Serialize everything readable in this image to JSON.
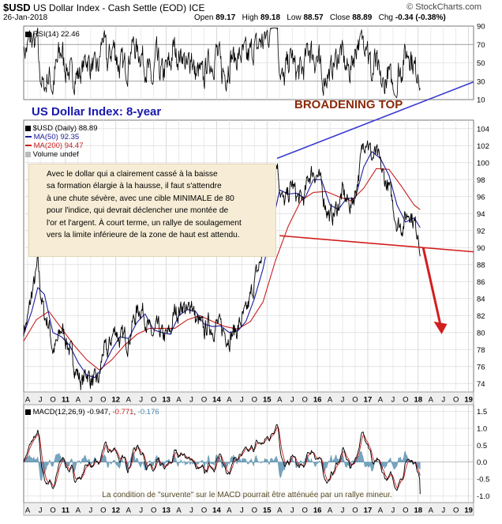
{
  "header": {
    "ticker": "$USD",
    "title_rest": "US Dollar Index - Cash Settle (EOD)",
    "exchange": "ICE",
    "date": "26-Jan-2018",
    "brand": "© StockCharts.com",
    "open_label": "Open",
    "open": "89.17",
    "high_label": "High",
    "high": "89.18",
    "low_label": "Low",
    "low": "88.57",
    "close_label": "Close",
    "close": "88.89",
    "chg_label": "Chg",
    "chg": "-0.34 (-0.38%)"
  },
  "colors": {
    "price": "#000000",
    "ma50": "#1c1c9c",
    "ma200": "#c81e1e",
    "grid": "#d9d9d9",
    "annotation_blue": "#3c3cd2",
    "annotation_red": "#d21e1e",
    "macd_fill": "#4a86a8"
  },
  "annotations": {
    "big_title": "US Dollar Index: 8-year",
    "broadening_top": "BROADENING TOP",
    "note_lines": [
      "Avec le dollar qui a clairement cassé à la baisse",
      "sa formation élargie à la hausse, il faut s'attendre",
      "à une chute sévère, avec une cible MINIMALE de 80",
      "pour l'indice, qui devrait déclencher une montée de",
      "l'or et l'argent. À court terme, un rallye de soulagement",
      "vers la limite inférieure de la zone de haut est attendu."
    ],
    "macd_note": "La condition de \"survente\" sur le MACD pourrait être atténuée par un rallye mineur."
  },
  "chart_data": [
    {
      "panel": "rsi",
      "type": "line",
      "label": "RSI(14)",
      "last_value": "22.46",
      "ylim": [
        10,
        90
      ],
      "yticks": [
        10,
        30,
        50,
        70,
        90
      ],
      "reference_lines": [
        30,
        70
      ]
    },
    {
      "panel": "price",
      "type": "line",
      "legend": [
        {
          "name": "$USD (Daily)",
          "value": "88.89"
        },
        {
          "name": "MA(50)",
          "value": "92.35"
        },
        {
          "name": "MA(200)",
          "value": "94.47"
        },
        {
          "name": "Volume undef",
          "value": ""
        }
      ],
      "ylim": [
        73,
        105
      ],
      "yticks": [
        74,
        76,
        78,
        80,
        82,
        84,
        86,
        88,
        90,
        92,
        94,
        96,
        98,
        100,
        102,
        104
      ],
      "x_start": 2010.17,
      "x_end": 2019.1,
      "price_path": [
        [
          2010.17,
          80.5
        ],
        [
          2010.25,
          81.5
        ],
        [
          2010.33,
          84.5
        ],
        [
          2010.42,
          86.8
        ],
        [
          2010.45,
          88.3
        ],
        [
          2010.5,
          85
        ],
        [
          2010.58,
          82
        ],
        [
          2010.67,
          81
        ],
        [
          2010.75,
          78
        ],
        [
          2010.83,
          78.5
        ],
        [
          2010.92,
          80.5
        ],
        [
          2011.0,
          79.5
        ],
        [
          2011.08,
          78
        ],
        [
          2011.17,
          76.5
        ],
        [
          2011.25,
          75
        ],
        [
          2011.33,
          74
        ],
        [
          2011.42,
          75.5
        ],
        [
          2011.5,
          74.5
        ],
        [
          2011.58,
          74
        ],
        [
          2011.67,
          74.5
        ],
        [
          2011.75,
          78
        ],
        [
          2011.83,
          77.5
        ],
        [
          2011.92,
          79.5
        ],
        [
          2012.0,
          80.5
        ],
        [
          2012.08,
          79
        ],
        [
          2012.17,
          79.5
        ],
        [
          2012.25,
          79
        ],
        [
          2012.33,
          81
        ],
        [
          2012.42,
          82.5
        ],
        [
          2012.5,
          83
        ],
        [
          2012.58,
          82
        ],
        [
          2012.67,
          80
        ],
        [
          2012.75,
          79.5
        ],
        [
          2012.83,
          80.5
        ],
        [
          2012.92,
          79.5
        ],
        [
          2013.0,
          79.5
        ],
        [
          2013.08,
          80
        ],
        [
          2013.17,
          82.5
        ],
        [
          2013.25,
          82.5
        ],
        [
          2013.33,
          83.5
        ],
        [
          2013.42,
          82
        ],
        [
          2013.5,
          84
        ],
        [
          2013.58,
          81.5
        ],
        [
          2013.67,
          81
        ],
        [
          2013.75,
          80
        ],
        [
          2013.83,
          81
        ],
        [
          2013.92,
          80.5
        ],
        [
          2014.0,
          81
        ],
        [
          2014.08,
          80.5
        ],
        [
          2014.17,
          80
        ],
        [
          2014.25,
          79.5
        ],
        [
          2014.33,
          80
        ],
        [
          2014.42,
          80.5
        ],
        [
          2014.5,
          81.5
        ],
        [
          2014.58,
          82
        ],
        [
          2014.67,
          84
        ],
        [
          2014.75,
          86
        ],
        [
          2014.83,
          87.5
        ],
        [
          2014.92,
          89.5
        ],
        [
          2015.0,
          92
        ],
        [
          2015.08,
          94.5
        ],
        [
          2015.17,
          99.5
        ],
        [
          2015.2,
          100.3
        ],
        [
          2015.25,
          97.5
        ],
        [
          2015.33,
          95
        ],
        [
          2015.42,
          96
        ],
        [
          2015.5,
          97.5
        ],
        [
          2015.58,
          96
        ],
        [
          2015.67,
          95.5
        ],
        [
          2015.75,
          96
        ],
        [
          2015.83,
          98.5
        ],
        [
          2015.92,
          99
        ],
        [
          2016.0,
          98.5
        ],
        [
          2016.08,
          97
        ],
        [
          2016.17,
          95
        ],
        [
          2016.25,
          93.5
        ],
        [
          2016.33,
          94
        ],
        [
          2016.42,
          95
        ],
        [
          2016.5,
          96.5
        ],
        [
          2016.58,
          95.5
        ],
        [
          2016.67,
          95
        ],
        [
          2016.75,
          96.5
        ],
        [
          2016.83,
          99
        ],
        [
          2016.92,
          102.5
        ],
        [
          2016.98,
          103.3
        ],
        [
          2017.08,
          100.5
        ],
        [
          2017.17,
          101
        ],
        [
          2017.25,
          99.5
        ],
        [
          2017.33,
          98
        ],
        [
          2017.42,
          97
        ],
        [
          2017.5,
          95
        ],
        [
          2017.58,
          93
        ],
        [
          2017.67,
          92.5
        ],
        [
          2017.75,
          93.5
        ],
        [
          2017.83,
          94.5
        ],
        [
          2017.92,
          93
        ],
        [
          2018.0,
          91.5
        ],
        [
          2018.04,
          88.9
        ]
      ],
      "ma50_path": [
        [
          2010.17,
          79.8
        ],
        [
          2010.33,
          82.5
        ],
        [
          2010.45,
          85.3
        ],
        [
          2010.58,
          84.5
        ],
        [
          2010.75,
          80
        ],
        [
          2010.92,
          79.5
        ],
        [
          2011.08,
          78.5
        ],
        [
          2011.25,
          76.5
        ],
        [
          2011.42,
          75
        ],
        [
          2011.58,
          74.7
        ],
        [
          2011.75,
          76
        ],
        [
          2011.92,
          78
        ],
        [
          2012.08,
          79.5
        ],
        [
          2012.25,
          79.3
        ],
        [
          2012.42,
          81.2
        ],
        [
          2012.58,
          82.2
        ],
        [
          2012.75,
          80.3
        ],
        [
          2012.92,
          80
        ],
        [
          2013.08,
          79.8
        ],
        [
          2013.25,
          82
        ],
        [
          2013.42,
          82.7
        ],
        [
          2013.58,
          82.5
        ],
        [
          2013.75,
          81
        ],
        [
          2013.92,
          80.7
        ],
        [
          2014.08,
          80.8
        ],
        [
          2014.25,
          80
        ],
        [
          2014.42,
          80.2
        ],
        [
          2014.58,
          81.3
        ],
        [
          2014.75,
          84
        ],
        [
          2014.92,
          87.5
        ],
        [
          2015.08,
          92
        ],
        [
          2015.25,
          96.8
        ],
        [
          2015.42,
          96.3
        ],
        [
          2015.58,
          96.4
        ],
        [
          2015.75,
          95.8
        ],
        [
          2015.92,
          98
        ],
        [
          2016.08,
          98
        ],
        [
          2016.25,
          95
        ],
        [
          2016.42,
          94.5
        ],
        [
          2016.58,
          95.8
        ],
        [
          2016.75,
          95.8
        ],
        [
          2016.92,
          99.5
        ],
        [
          2017.08,
          101.3
        ],
        [
          2017.25,
          100.5
        ],
        [
          2017.42,
          98.5
        ],
        [
          2017.58,
          95
        ],
        [
          2017.75,
          93
        ],
        [
          2017.92,
          93.5
        ],
        [
          2018.04,
          92.35
        ]
      ],
      "ma200_path": [
        [
          2010.17,
          79
        ],
        [
          2010.42,
          81.5
        ],
        [
          2010.67,
          82.5
        ],
        [
          2010.92,
          80.5
        ],
        [
          2011.17,
          78.5
        ],
        [
          2011.42,
          76.8
        ],
        [
          2011.67,
          75.6
        ],
        [
          2011.92,
          76.8
        ],
        [
          2012.17,
          78.5
        ],
        [
          2012.42,
          79.8
        ],
        [
          2012.67,
          80.5
        ],
        [
          2012.92,
          80.5
        ],
        [
          2013.17,
          80.5
        ],
        [
          2013.42,
          81.5
        ],
        [
          2013.67,
          82
        ],
        [
          2013.92,
          81.3
        ],
        [
          2014.17,
          80.7
        ],
        [
          2014.42,
          80.4
        ],
        [
          2014.67,
          81.3
        ],
        [
          2014.92,
          83.6
        ],
        [
          2015.17,
          88.5
        ],
        [
          2015.42,
          92.5
        ],
        [
          2015.67,
          95.5
        ],
        [
          2015.92,
          96.5
        ],
        [
          2016.17,
          96.6
        ],
        [
          2016.42,
          96
        ],
        [
          2016.67,
          95.5
        ],
        [
          2016.92,
          97
        ],
        [
          2017.17,
          99.3
        ],
        [
          2017.42,
          99.2
        ],
        [
          2017.67,
          97.2
        ],
        [
          2017.92,
          95
        ],
        [
          2018.04,
          94.47
        ]
      ],
      "trendlines": [
        {
          "name": "upper",
          "from": [
            2015.2,
            100.5
          ],
          "to": [
            2019.1,
            109.5
          ]
        },
        {
          "name": "lower",
          "from": [
            2015.25,
            91.4
          ],
          "to": [
            2019.1,
            89.5
          ]
        }
      ],
      "arrow": {
        "from": [
          2018.1,
          90.0
        ],
        "to": [
          2018.45,
          79.8
        ]
      }
    },
    {
      "panel": "macd",
      "type": "line",
      "label": "MACD(12,26,9)",
      "values": [
        "-0.947",
        "-0.771",
        "-0.176"
      ],
      "ylim": [
        -1.2,
        1.7
      ],
      "yticks": [
        -1.0,
        -0.5,
        0.0,
        0.5,
        1.0,
        1.5
      ],
      "ytick_labels": [
        "-1.0",
        "-0.5",
        "0.0",
        "0.5",
        "1.0",
        "1.5"
      ]
    }
  ],
  "x_axis": {
    "labels": [
      {
        "t": 2010.25,
        "text": "A"
      },
      {
        "t": 2010.5,
        "text": "J"
      },
      {
        "t": 2010.75,
        "text": "O"
      },
      {
        "t": 2011.0,
        "text": "11",
        "bold": true
      },
      {
        "t": 2011.25,
        "text": "A"
      },
      {
        "t": 2011.5,
        "text": "J"
      },
      {
        "t": 2011.75,
        "text": "O"
      },
      {
        "t": 2012.0,
        "text": "12",
        "bold": true
      },
      {
        "t": 2012.25,
        "text": "A"
      },
      {
        "t": 2012.5,
        "text": "J"
      },
      {
        "t": 2012.75,
        "text": "O"
      },
      {
        "t": 2013.0,
        "text": "13",
        "bold": true
      },
      {
        "t": 2013.25,
        "text": "A"
      },
      {
        "t": 2013.5,
        "text": "J"
      },
      {
        "t": 2013.75,
        "text": "O"
      },
      {
        "t": 2014.0,
        "text": "14",
        "bold": true
      },
      {
        "t": 2014.25,
        "text": "A"
      },
      {
        "t": 2014.5,
        "text": "J"
      },
      {
        "t": 2014.75,
        "text": "O"
      },
      {
        "t": 2015.0,
        "text": "15",
        "bold": true
      },
      {
        "t": 2015.25,
        "text": "A"
      },
      {
        "t": 2015.5,
        "text": "J"
      },
      {
        "t": 2015.75,
        "text": "O"
      },
      {
        "t": 2016.0,
        "text": "16",
        "bold": true
      },
      {
        "t": 2016.25,
        "text": "A"
      },
      {
        "t": 2016.5,
        "text": "J"
      },
      {
        "t": 2016.75,
        "text": "O"
      },
      {
        "t": 2017.0,
        "text": "17",
        "bold": true
      },
      {
        "t": 2017.25,
        "text": "A"
      },
      {
        "t": 2017.5,
        "text": "J"
      },
      {
        "t": 2017.75,
        "text": "O"
      },
      {
        "t": 2018.0,
        "text": "18",
        "bold": true
      },
      {
        "t": 2018.25,
        "text": "A"
      },
      {
        "t": 2018.5,
        "text": "J"
      },
      {
        "t": 2018.75,
        "text": "O"
      },
      {
        "t": 2019.0,
        "text": "19",
        "bold": true
      }
    ]
  }
}
